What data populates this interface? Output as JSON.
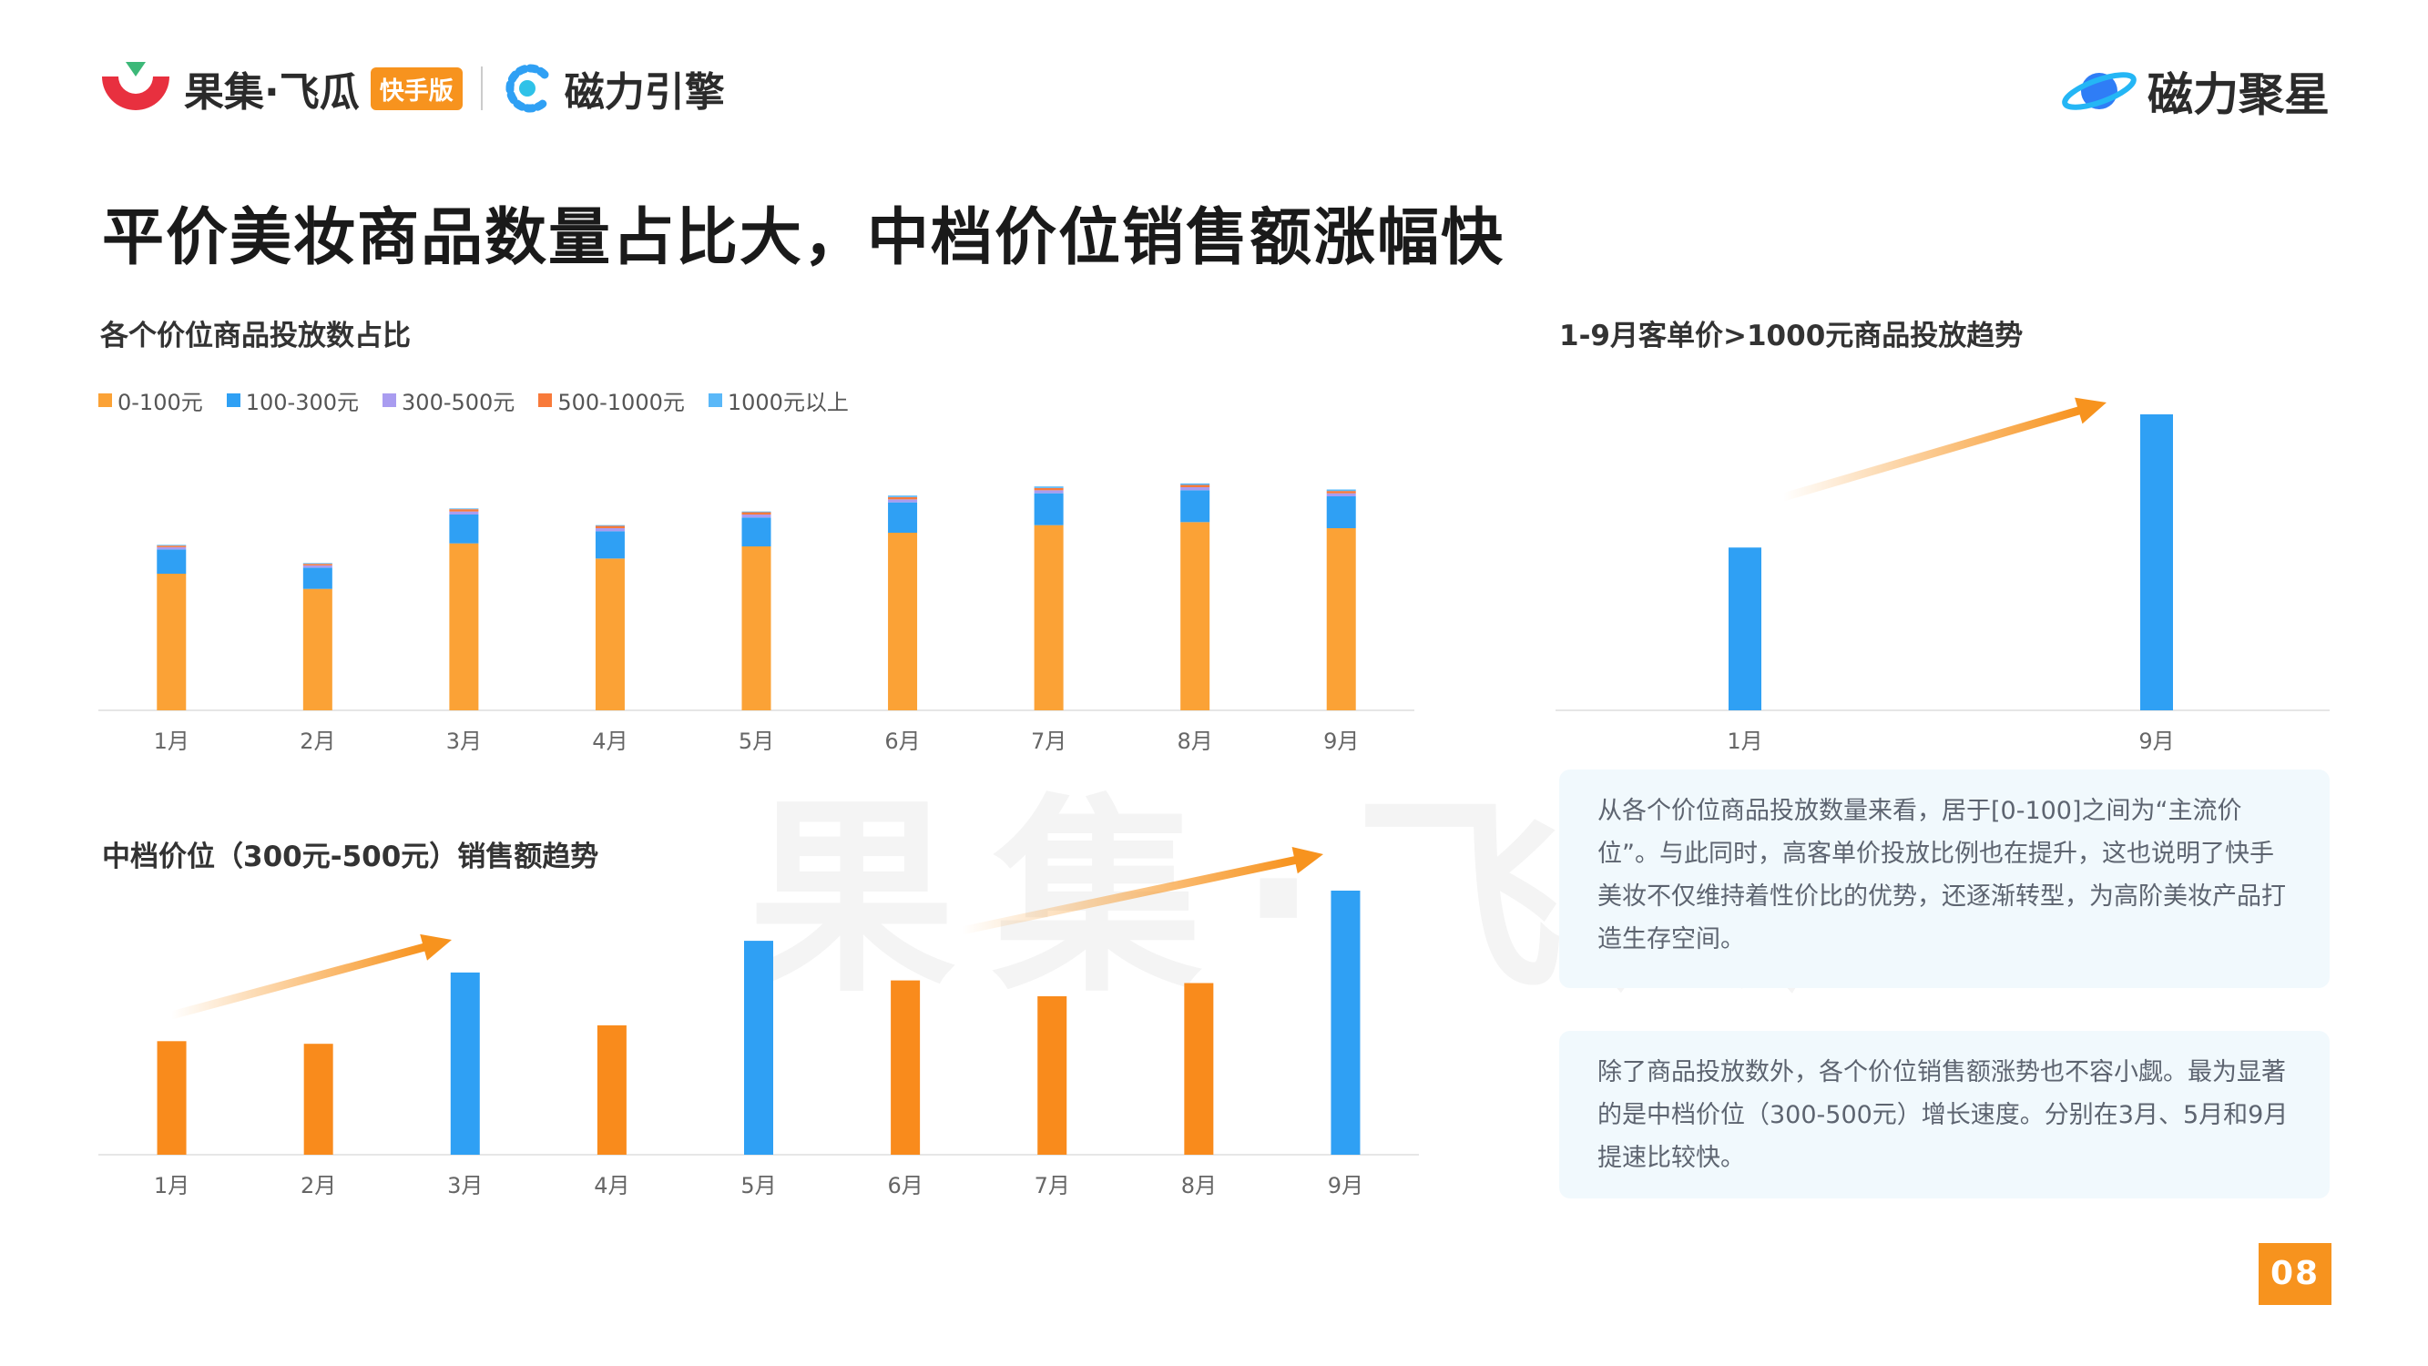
{
  "header": {
    "brand_primary": "果集·飞瓜",
    "brand_badge": "快手版",
    "brand_secondary": "磁力引擎",
    "brand_right": "磁力聚星"
  },
  "title": "平价美妆商品数量占比大，中档价位销售额涨幅快",
  "watermark": "果集·飞瓜",
  "textboxes": [
    "从各个价位商品投放数量来看，居于[0-100]之间为“主流价位”。与此同时，高客单价投放比例也在提升，这也说明了快手美妆不仅维持着性价比的优势，还逐渐转型，为高阶美妆产品打造生存空间。",
    "除了商品投放数外，各个价位销售额涨势也不容小觑。最为显著的是中档价位（300-500元）增长速度。分别在3月、5月和9月提速比较快。"
  ],
  "page_number": "08",
  "colors": {
    "orange": "#fba236",
    "orange_dark": "#f98b1c",
    "blue": "#2fa0f4",
    "purple": "#a99cf0",
    "coral": "#f87a3a",
    "sky": "#5ab8f8"
  },
  "chart_data": [
    {
      "type": "bar",
      "stacked": true,
      "title": "各个价位商品投放数占比",
      "categories": [
        "1月",
        "2月",
        "3月",
        "4月",
        "5月",
        "6月",
        "7月",
        "8月",
        "9月"
      ],
      "series": [
        {
          "name": "0-100元",
          "color": "#fba236",
          "values": [
            90,
            80,
            110,
            100,
            108,
            117,
            122,
            124,
            120
          ]
        },
        {
          "name": "100-300元",
          "color": "#2fa0f4",
          "values": [
            16,
            14,
            19,
            18,
            19,
            20,
            21,
            21,
            21
          ]
        },
        {
          "name": "300-500元",
          "color": "#a99cf0",
          "values": [
            1.5,
            1.5,
            2,
            2,
            2,
            2,
            2,
            2,
            2
          ]
        },
        {
          "name": "500-1000元",
          "color": "#f87a3a",
          "values": [
            1,
            1,
            1.5,
            1.5,
            1.5,
            1.5,
            1.5,
            1.5,
            1.5
          ]
        },
        {
          "name": "1000元以上",
          "color": "#5ab8f8",
          "values": [
            0.5,
            0.5,
            0.5,
            0.5,
            0.5,
            1,
            1,
            1,
            1
          ]
        }
      ],
      "ylim": [
        0,
        150
      ]
    },
    {
      "type": "bar",
      "title": "1-9月客单价>1000元商品投放趋势",
      "categories": [
        "1月",
        "9月"
      ],
      "values": [
        55,
        100
      ],
      "ylim": [
        0,
        100
      ]
    },
    {
      "type": "bar",
      "title": "中档价位（300元-500元）销售额趋势",
      "categories": [
        "1月",
        "2月",
        "3月",
        "4月",
        "5月",
        "6月",
        "7月",
        "8月",
        "9月"
      ],
      "values": [
        43,
        42,
        69,
        49,
        81,
        66,
        60,
        65,
        100
      ],
      "highlight_indices": [
        2,
        4,
        8
      ],
      "ylim": [
        0,
        100
      ]
    }
  ]
}
